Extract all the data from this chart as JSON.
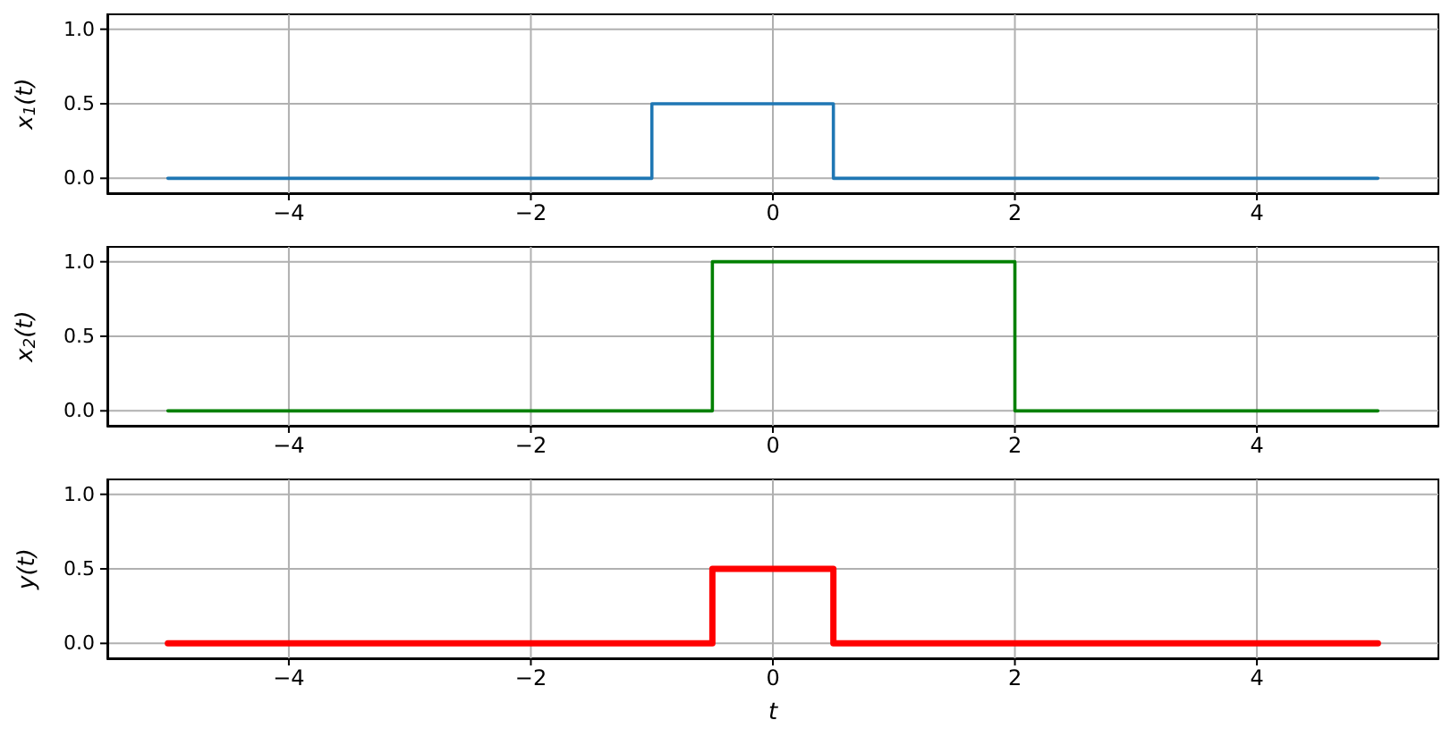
{
  "chart_data": [
    {
      "type": "line",
      "ylabel": "x$_{1}$(t)",
      "x": [
        -5,
        -1,
        -1,
        0.5,
        0.5,
        5
      ],
      "series": [
        {
          "color": "#1f77b4",
          "values": [
            0,
            0,
            0.5,
            0.5,
            0,
            0
          ]
        }
      ],
      "xlim": [
        -5.5,
        5.5
      ],
      "xticks": [
        -4,
        -2,
        0,
        2,
        4
      ],
      "ylim": [
        -0.1,
        1.1
      ],
      "yticks": [
        {
          "value": 0,
          "label": "0.0"
        },
        {
          "value": 0.5,
          "label": "0.5"
        },
        {
          "value": 1,
          "label": "1.0"
        }
      ],
      "grid": true,
      "marker": "none",
      "line_style": "solid"
    },
    {
      "type": "line",
      "ylabel": "x$_{2}$(t)",
      "x": [
        -5,
        -0.5,
        -0.5,
        2,
        2,
        5
      ],
      "series": [
        {
          "color": "#008000",
          "values": [
            0,
            0,
            1,
            1,
            0,
            0
          ]
        }
      ],
      "xlim": [
        -5.5,
        5.5
      ],
      "xticks": [
        -4,
        -2,
        0,
        2,
        4
      ],
      "ylim": [
        -0.1,
        1.1
      ],
      "yticks": [
        {
          "value": 0,
          "label": "0.0"
        },
        {
          "value": 0.5,
          "label": "0.5"
        },
        {
          "value": 1,
          "label": "1.0"
        }
      ],
      "grid": true,
      "marker": "none",
      "line_style": "solid"
    },
    {
      "type": "line",
      "ylabel": "y(t)",
      "xlabel": "t",
      "x": [
        -5,
        -0.5,
        -0.5,
        0.5,
        0.5,
        5
      ],
      "series": [
        {
          "color": "#ff0000",
          "values": [
            0,
            0,
            0.5,
            0.5,
            0,
            0
          ]
        }
      ],
      "xlim": [
        -5.5,
        5.5
      ],
      "xticks": [
        -4,
        -2,
        0,
        2,
        4
      ],
      "ylim": [
        -0.1,
        1.1
      ],
      "yticks": [
        {
          "value": 0,
          "label": "0.0"
        },
        {
          "value": 0.5,
          "label": "0.5"
        },
        {
          "value": 1,
          "label": "1.0"
        }
      ],
      "grid": true,
      "marker": "none",
      "line_style": "solid"
    }
  ]
}
